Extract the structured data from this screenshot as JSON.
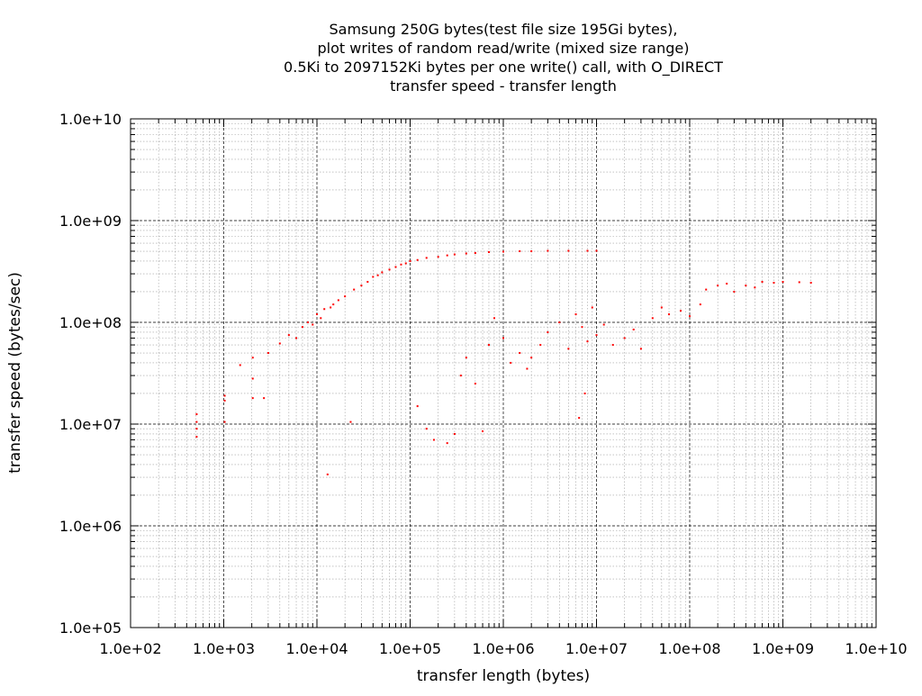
{
  "chart_data": {
    "type": "scatter",
    "title": [
      "Samsung 250G bytes(test file size 195Gi bytes),",
      "plot writes of random read/write (mixed size range)",
      "0.5Ki to 2097152Ki bytes per one write() call, with O_DIRECT",
      "transfer speed - transfer length"
    ],
    "xlabel": "transfer length (bytes)",
    "ylabel": "transfer speed (bytes/sec)",
    "xscale": "log",
    "yscale": "log",
    "xlim": [
      100,
      10000000000
    ],
    "ylim": [
      100000,
      10000000000
    ],
    "grid": true,
    "point_color": "#ff0000",
    "x_ticks": [
      {
        "value": 100,
        "label": "1.0e+02"
      },
      {
        "value": 1000,
        "label": "1.0e+03"
      },
      {
        "value": 10000,
        "label": "1.0e+04"
      },
      {
        "value": 100000,
        "label": "1.0e+05"
      },
      {
        "value": 1000000,
        "label": "1.0e+06"
      },
      {
        "value": 10000000,
        "label": "1.0e+07"
      },
      {
        "value": 100000000,
        "label": "1.0e+08"
      },
      {
        "value": 1000000000,
        "label": "1.0e+09"
      },
      {
        "value": 10000000000,
        "label": "1.0e+10"
      }
    ],
    "y_ticks": [
      {
        "value": 100000,
        "label": "1.0e+05"
      },
      {
        "value": 1000000,
        "label": "1.0e+06"
      },
      {
        "value": 10000000,
        "label": "1.0e+07"
      },
      {
        "value": 100000000,
        "label": "1.0e+08"
      },
      {
        "value": 1000000000,
        "label": "1.0e+09"
      },
      {
        "value": 10000000000,
        "label": "1.0e+10"
      }
    ],
    "series": [
      {
        "color": "#ff0000",
        "points": [
          [
            512,
            7500000
          ],
          [
            512,
            9000000
          ],
          [
            512,
            10500000
          ],
          [
            512,
            12500000
          ],
          [
            1024,
            10500000
          ],
          [
            1024,
            17000000
          ],
          [
            1024,
            19000000
          ],
          [
            1500,
            38000000
          ],
          [
            2048,
            28000000
          ],
          [
            2048,
            45000000
          ],
          [
            2048,
            18000000
          ],
          [
            2700,
            18000000
          ],
          [
            3000,
            50000000
          ],
          [
            4000,
            62000000
          ],
          [
            5000,
            75000000
          ],
          [
            6000,
            70000000
          ],
          [
            7000,
            90000000
          ],
          [
            8000,
            100000000
          ],
          [
            9000,
            95000000
          ],
          [
            10000,
            120000000
          ],
          [
            11000,
            110000000
          ],
          [
            12000,
            135000000
          ],
          [
            13000,
            3200000
          ],
          [
            14000,
            140000000
          ],
          [
            15000,
            150000000
          ],
          [
            17000,
            165000000
          ],
          [
            20000,
            180000000
          ],
          [
            23000,
            10500000
          ],
          [
            25000,
            210000000
          ],
          [
            30000,
            230000000
          ],
          [
            35000,
            250000000
          ],
          [
            40000,
            280000000
          ],
          [
            45000,
            290000000
          ],
          [
            50000,
            310000000
          ],
          [
            60000,
            330000000
          ],
          [
            70000,
            350000000
          ],
          [
            80000,
            370000000
          ],
          [
            90000,
            380000000
          ],
          [
            100000,
            400000000
          ],
          [
            120000,
            410000000
          ],
          [
            150000,
            430000000
          ],
          [
            200000,
            440000000
          ],
          [
            250000,
            455000000
          ],
          [
            300000,
            465000000
          ],
          [
            400000,
            475000000
          ],
          [
            500000,
            480000000
          ],
          [
            700000,
            490000000
          ],
          [
            1000000,
            495000000
          ],
          [
            1500000,
            500000000
          ],
          [
            2000000,
            500000000
          ],
          [
            3000000,
            505000000
          ],
          [
            5000000,
            505000000
          ],
          [
            8000000,
            505000000
          ],
          [
            10000000,
            505000000
          ],
          [
            120000,
            15000000
          ],
          [
            150000,
            9000000
          ],
          [
            180000,
            7000000
          ],
          [
            250000,
            6500000
          ],
          [
            300000,
            8000000
          ],
          [
            350000,
            30000000
          ],
          [
            400000,
            45000000
          ],
          [
            500000,
            25000000
          ],
          [
            600000,
            8500000
          ],
          [
            700000,
            60000000
          ],
          [
            800000,
            110000000
          ],
          [
            1000000,
            70000000
          ],
          [
            1200000,
            40000000
          ],
          [
            1500000,
            50000000
          ],
          [
            1800000,
            35000000
          ],
          [
            2000000,
            45000000
          ],
          [
            2500000,
            60000000
          ],
          [
            3000000,
            80000000
          ],
          [
            4000000,
            100000000
          ],
          [
            5000000,
            55000000
          ],
          [
            6000000,
            120000000
          ],
          [
            6500000,
            11500000
          ],
          [
            7000000,
            90000000
          ],
          [
            7500000,
            20000000
          ],
          [
            8000000,
            65000000
          ],
          [
            9000000,
            140000000
          ],
          [
            10000000,
            75000000
          ],
          [
            12000000,
            95000000
          ],
          [
            15000000,
            60000000
          ],
          [
            20000000,
            70000000
          ],
          [
            25000000,
            85000000
          ],
          [
            30000000,
            55000000
          ],
          [
            40000000,
            110000000
          ],
          [
            50000000,
            140000000
          ],
          [
            60000000,
            120000000
          ],
          [
            80000000,
            130000000
          ],
          [
            100000000,
            115000000
          ],
          [
            130000000,
            150000000
          ],
          [
            150000000,
            210000000
          ],
          [
            200000000,
            230000000
          ],
          [
            250000000,
            240000000
          ],
          [
            300000000,
            200000000
          ],
          [
            400000000,
            230000000
          ],
          [
            500000000,
            220000000
          ],
          [
            600000000,
            250000000
          ],
          [
            800000000,
            245000000
          ],
          [
            1000000000,
            250000000
          ],
          [
            1500000000,
            248000000
          ],
          [
            2000000000,
            245000000
          ]
        ]
      }
    ]
  }
}
